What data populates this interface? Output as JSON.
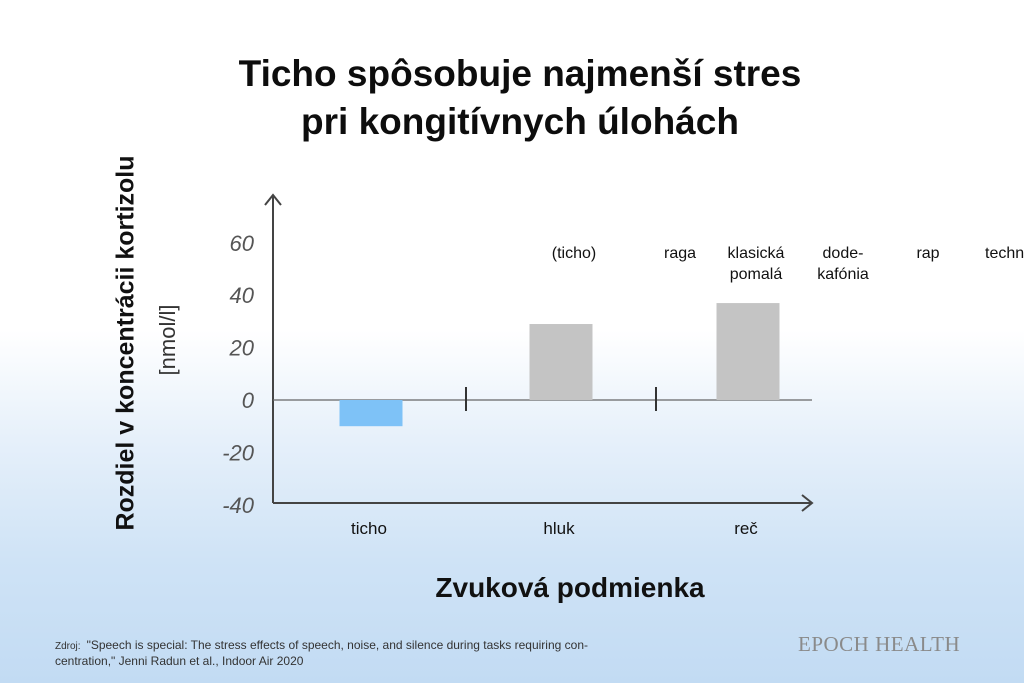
{
  "title_line1": "Ticho spôsobuje najmenší stres",
  "title_line2": "pri kongitívnych úlohách",
  "source_label": "Zdroj:",
  "source_text_line1": "\"Speech is special: The stress effects of speech, noise, and silence during tasks requiring con-",
  "source_text_line2": "centration,\" Jenni Radun et al., Indoor Air 2020",
  "logo": "EPOCH HEALTH",
  "colors": {
    "negative_bar": "#7ec2f7",
    "positive_bar": "#c4c4c4",
    "axis": "#444444"
  },
  "chart_data": {
    "type": "bar",
    "title": "Ticho spôsobuje najmenší stres pri kongitívnych úlohách",
    "xlabel": "Zvuková podmienka",
    "ylabel": "Rozdiel v koncentrácii kortizolu",
    "ylabel_unit": "[nmol/l]",
    "ylim": [
      -40,
      70
    ],
    "yticks": [
      "60",
      "40",
      "20",
      "0",
      "-20",
      "-40"
    ],
    "categories": [
      "ticho",
      "hluk",
      "reč"
    ],
    "values": [
      -10,
      29,
      37
    ],
    "bar_color_negative": "#7ec2f7",
    "bar_color_positive": "#c4c4c4",
    "group_dividers": true,
    "annotations": [
      "(ticho)",
      "raga",
      "klasická pomalá",
      "dode- kafónia",
      "rap",
      "techno"
    ],
    "grid": false,
    "legend": "none"
  }
}
